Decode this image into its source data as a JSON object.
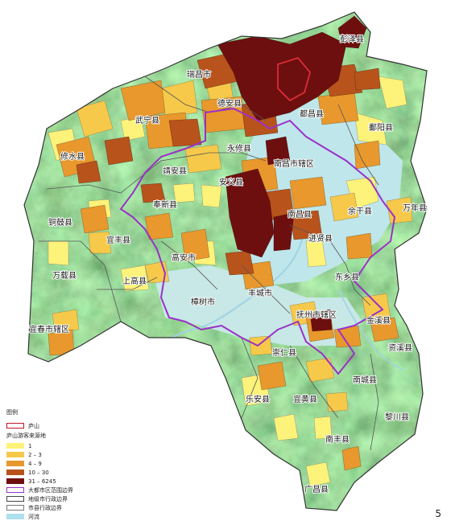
{
  "map": {
    "places": [
      {
        "name": "彭泽县"
      },
      {
        "name": "瑞昌市"
      },
      {
        "name": "德安县"
      },
      {
        "name": "都昌县"
      },
      {
        "name": "武宁县"
      },
      {
        "name": "鄱阳县"
      },
      {
        "name": "修水县"
      },
      {
        "name": "永修县"
      },
      {
        "name": "南昌市辖区"
      },
      {
        "name": "靖安县"
      },
      {
        "name": "安义县"
      },
      {
        "name": "奉新县"
      },
      {
        "name": "铜鼓县"
      },
      {
        "name": "余干县"
      },
      {
        "name": "万年县"
      },
      {
        "name": "南昌县"
      },
      {
        "name": "宜丰县"
      },
      {
        "name": "进贤县"
      },
      {
        "name": "高安市"
      },
      {
        "name": "万载县"
      },
      {
        "name": "上高县"
      },
      {
        "name": "东乡县"
      },
      {
        "name": "丰城市"
      },
      {
        "name": "樟树市"
      },
      {
        "name": "宜春市辖区"
      },
      {
        "name": "抚州市辖区"
      },
      {
        "name": "金溪县"
      },
      {
        "name": "崇仁县"
      },
      {
        "name": "资溪县"
      },
      {
        "name": "南城县"
      },
      {
        "name": "乐安县"
      },
      {
        "name": "宜黄县"
      },
      {
        "name": "黎川县"
      },
      {
        "name": "南丰县"
      },
      {
        "name": "广昌县"
      }
    ]
  },
  "legend": {
    "title": "图例",
    "items": [
      {
        "label": "庐山",
        "color": "#c0182a"
      }
    ],
    "subtitle": "庐山游客来源地",
    "classes": [
      {
        "label": "1",
        "color": "#fdf27a"
      },
      {
        "label": "2 – 3",
        "color": "#f6c94a"
      },
      {
        "label": "4 – 9",
        "color": "#e8982c"
      },
      {
        "label": "10 – 30",
        "color": "#b8531c"
      },
      {
        "label": "31 – 6245",
        "color": "#6e0f0f"
      }
    ],
    "boundaries": [
      {
        "label": "大都市区范围边界",
        "color": "#9b30c8"
      },
      {
        "label": "地级市行政边界",
        "color": "#444444"
      },
      {
        "label": "市县行政边界",
        "color": "#777777"
      },
      {
        "label": "河流",
        "color": "#aee0ee"
      }
    ]
  },
  "page_number": "5"
}
